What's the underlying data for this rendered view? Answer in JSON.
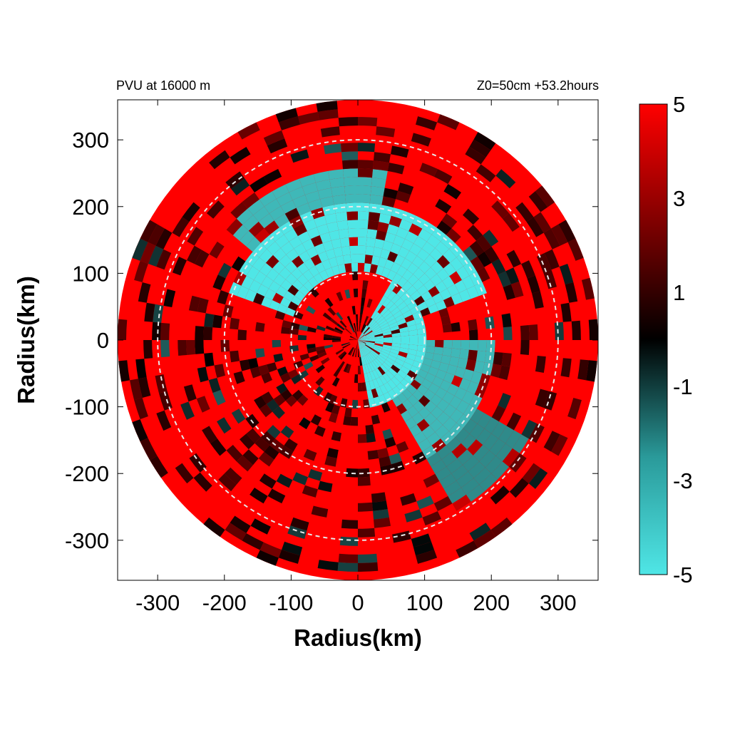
{
  "chart_data": {
    "type": "heatmap",
    "subtype": "polar radar-style field",
    "title_left": "PVU at 16000 m",
    "title_right": "Z0=50cm  +53.2hours",
    "xlabel": "Radius(km)",
    "ylabel": "Radius(km)",
    "xlim": [
      -360,
      360
    ],
    "ylim": [
      -360,
      360
    ],
    "x_ticks": [
      -300,
      -200,
      -100,
      0,
      100,
      200,
      300
    ],
    "y_ticks": [
      300,
      200,
      100,
      0,
      -100,
      -200,
      -300
    ],
    "x_tick_labels": [
      "-300",
      "-200",
      "-100",
      "0",
      "100",
      "200",
      "300"
    ],
    "y_tick_labels": [
      "300",
      "200",
      "100",
      "0",
      "-100",
      "-200",
      "-300"
    ],
    "data_radius_km": 360,
    "range_rings_km": [
      100,
      200,
      300
    ],
    "colorbar": {
      "min": -5,
      "max": 5,
      "tick_labels": [
        "5",
        "3",
        "1",
        "-1",
        "-3",
        "-5"
      ],
      "tick_values": [
        5,
        3,
        1,
        -1,
        -3,
        -5
      ],
      "colors": {
        "low": "#4fe6e6",
        "mid_low": "#1f7f7f",
        "zero": "#000000",
        "mid_high": "#7f0000",
        "high": "#ff0000"
      }
    },
    "regions": [
      {
        "r_min": 0,
        "r_max": 100,
        "theta_start": 280,
        "theta_end": 360,
        "value": -5
      },
      {
        "r_min": 0,
        "r_max": 100,
        "theta_start": 0,
        "theta_end": 60,
        "value": -5
      },
      {
        "r_min": 100,
        "r_max": 200,
        "theta_start": 20,
        "theta_end": 160,
        "value": -5
      },
      {
        "r_min": 100,
        "r_max": 200,
        "theta_start": 300,
        "theta_end": 360,
        "value": -4
      },
      {
        "r_min": 200,
        "r_max": 260,
        "theta_start": 80,
        "theta_end": 140,
        "value": -4
      },
      {
        "r_min": 200,
        "r_max": 300,
        "theta_start": 300,
        "theta_end": 330,
        "value": -3
      }
    ]
  },
  "colors": {
    "ring": "#e8e8e8",
    "frame": "#000000"
  }
}
